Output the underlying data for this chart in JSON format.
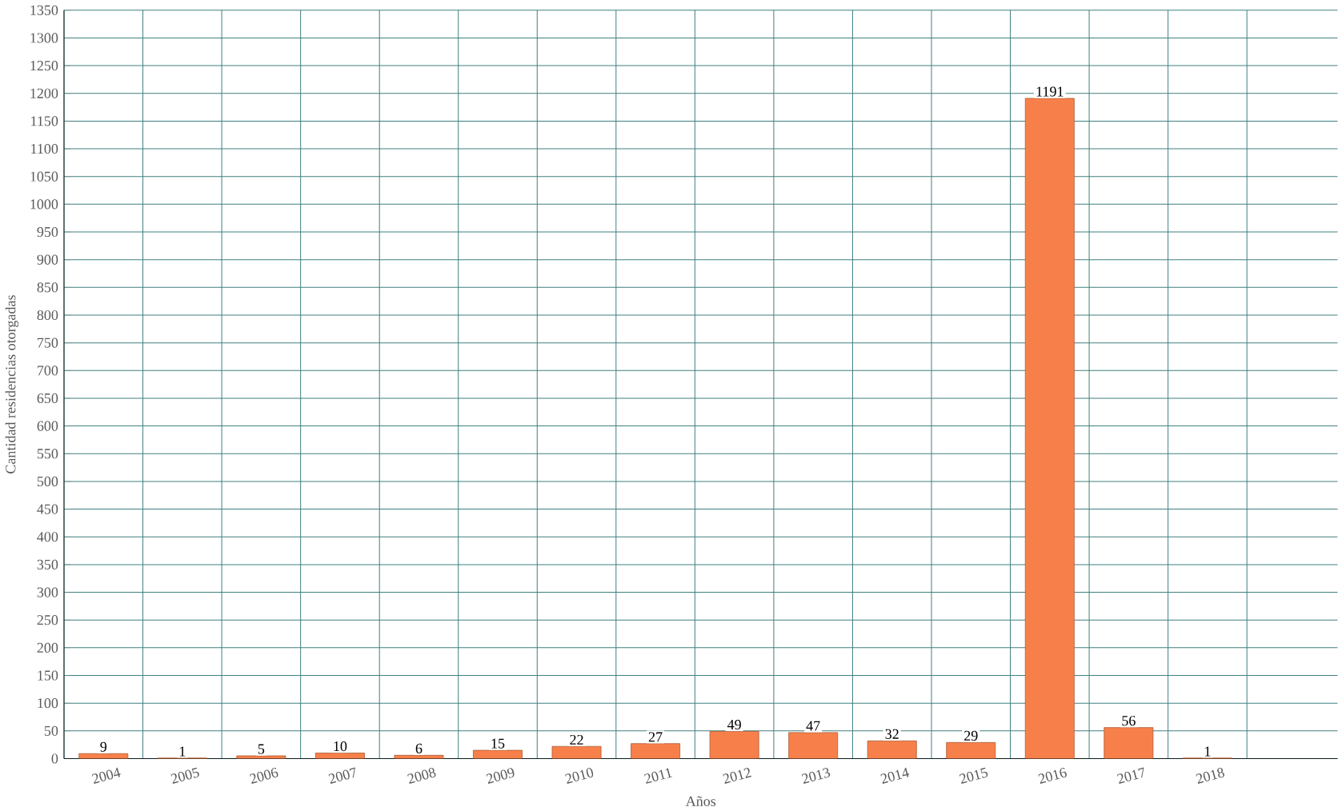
{
  "chart_data": {
    "type": "bar",
    "xlabel": "Años",
    "ylabel": "Cantidad residencias otorgadas",
    "categories": [
      "2004",
      "2005",
      "2006",
      "2007",
      "2008",
      "2009",
      "2010",
      "2011",
      "2012",
      "2013",
      "2014",
      "2015",
      "2016",
      "2017",
      "2018"
    ],
    "values": [
      9,
      1,
      5,
      10,
      6,
      15,
      22,
      27,
      49,
      47,
      32,
      29,
      1191,
      56,
      1
    ],
    "color": "#f7804a",
    "ylim": [
      0,
      1350
    ],
    "yticks": [
      0,
      50,
      100,
      150,
      200,
      250,
      300,
      350,
      400,
      450,
      500,
      550,
      600,
      650,
      700,
      750,
      800,
      850,
      900,
      950,
      1000,
      1050,
      1100,
      1150,
      1200,
      1250,
      1300,
      1350
    ],
    "grid": true,
    "data_labels": true
  }
}
